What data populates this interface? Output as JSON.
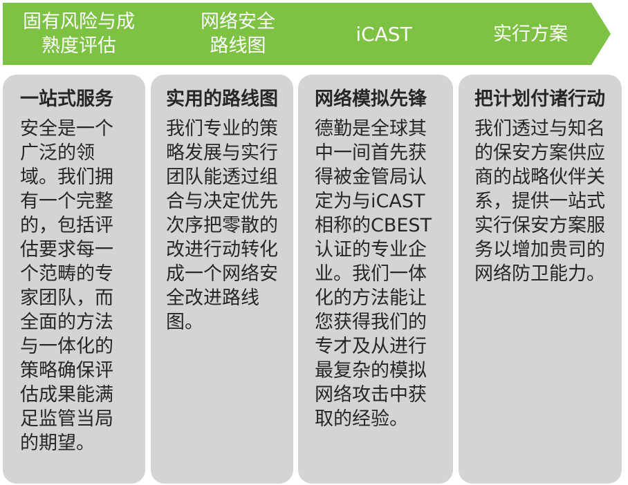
{
  "colors": {
    "chevron_fill": "#7dc242",
    "chevron_text": "#ffffff",
    "card_fill": "#d4d4d4",
    "card_text": "#262626"
  },
  "steps": [
    {
      "label": "固有风险与成\n熟度评估"
    },
    {
      "label": "网络安全\n路线图"
    },
    {
      "label": "iCAST"
    },
    {
      "label": "实行方案"
    }
  ],
  "cards": [
    {
      "title": "一站式服务",
      "body": "安全是一个广泛的领域。我们拥有一个完整的，包括评估要求每一个范畴的专家团队，而全面的方法与一体化的策略确保评估成果能满足监管当局的期望。"
    },
    {
      "title": "实用的路线图",
      "body": "我们专业的策略发展与实行团队能透过组合与决定优先次序把零散的改进行动转化成一个网络安全改进路线图。"
    },
    {
      "title": "网络模拟先锋",
      "body_parts": [
        "德勤是全球其中一间首先获得被金管局认定为与",
        "iCAST",
        "相称的",
        "CBEST",
        "认证的专业企业。我们一体化的方法能让您获得我们的专才及从进行最复杂的模拟网络攻击中获取的经验。"
      ]
    },
    {
      "title": "把计划付诸行动",
      "body": "我们透过与知名的保安方案供应商的战略伙伴关系，提供一站式实行保安方案服务以增加贵司的网络防卫能力。"
    }
  ]
}
